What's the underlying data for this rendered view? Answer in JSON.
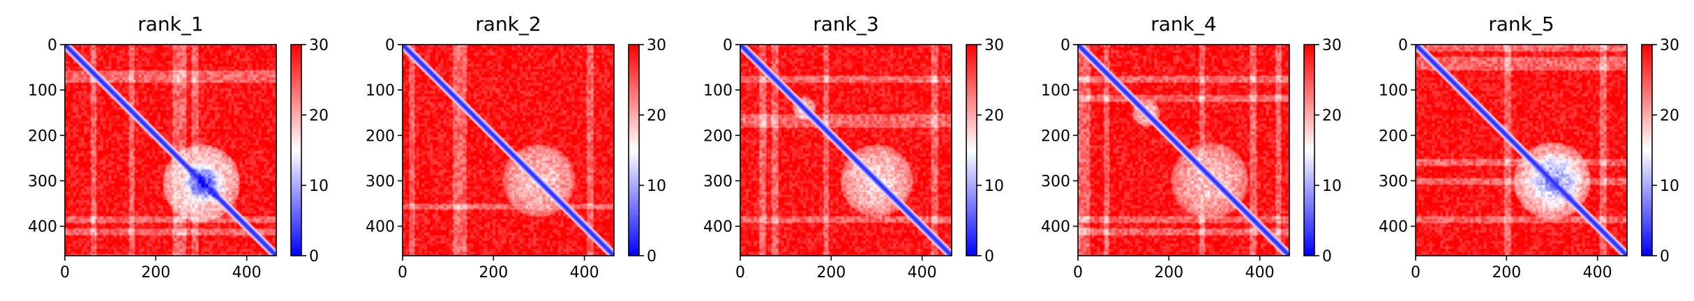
{
  "chart_data": [
    {
      "type": "heatmap",
      "title": "rank_1",
      "x_ticks": [
        0,
        200,
        400
      ],
      "y_ticks": [
        0,
        100,
        200,
        300,
        400
      ],
      "xlim": [
        0,
        465
      ],
      "ylim": [
        465,
        0
      ],
      "colorbar": {
        "range": [
          0,
          30
        ],
        "ticks": [
          0,
          10,
          20,
          30
        ],
        "colormap": "bwr"
      },
      "hotspots": [
        {
          "cx": 305,
          "cy": 305,
          "r": 45,
          "value": 3,
          "sharp": 0.35
        },
        {
          "cx": 300,
          "cy": 305,
          "r": 85,
          "value": 16,
          "sharp": 0.2
        }
      ]
    },
    {
      "type": "heatmap",
      "title": "rank_2",
      "x_ticks": [
        0,
        200,
        400
      ],
      "y_ticks": [
        0,
        100,
        200,
        300,
        400
      ],
      "xlim": [
        0,
        465
      ],
      "ylim": [
        465,
        0
      ],
      "colorbar": {
        "range": [
          0,
          30
        ],
        "ticks": [
          0,
          10,
          20,
          30
        ],
        "colormap": "bwr"
      },
      "hotspots": [
        {
          "cx": 300,
          "cy": 300,
          "r": 80,
          "value": 18,
          "sharp": 0.25
        }
      ]
    },
    {
      "type": "heatmap",
      "title": "rank_3",
      "x_ticks": [
        0,
        200,
        400
      ],
      "y_ticks": [
        0,
        100,
        200,
        300,
        400
      ],
      "xlim": [
        0,
        465
      ],
      "ylim": [
        465,
        0
      ],
      "colorbar": {
        "range": [
          0,
          30
        ],
        "ticks": [
          0,
          10,
          20,
          30
        ],
        "colormap": "bwr"
      },
      "hotspots": [
        {
          "cx": 300,
          "cy": 300,
          "r": 80,
          "value": 17,
          "sharp": 0.25
        },
        {
          "cx": 140,
          "cy": 140,
          "r": 25,
          "value": 18,
          "sharp": 0.2
        }
      ]
    },
    {
      "type": "heatmap",
      "title": "rank_4",
      "x_ticks": [
        0,
        200,
        400
      ],
      "y_ticks": [
        0,
        100,
        200,
        300,
        400
      ],
      "xlim": [
        0,
        465
      ],
      "ylim": [
        465,
        0
      ],
      "colorbar": {
        "range": [
          0,
          30
        ],
        "ticks": [
          0,
          10,
          20,
          30
        ],
        "colormap": "bwr"
      },
      "hotspots": [
        {
          "cx": 290,
          "cy": 300,
          "r": 85,
          "value": 18,
          "sharp": 0.25
        },
        {
          "cx": 150,
          "cy": 150,
          "r": 30,
          "value": 19,
          "sharp": 0.2
        }
      ]
    },
    {
      "type": "heatmap",
      "title": "rank_5",
      "x_ticks": [
        0,
        200,
        400
      ],
      "y_ticks": [
        0,
        100,
        200,
        300,
        400
      ],
      "xlim": [
        0,
        465
      ],
      "ylim": [
        465,
        0
      ],
      "colorbar": {
        "range": [
          0,
          30
        ],
        "ticks": [
          0,
          10,
          20,
          30
        ],
        "colormap": "bwr"
      },
      "hotspots": [
        {
          "cx": 305,
          "cy": 300,
          "r": 60,
          "value": 8,
          "sharp": 0.3
        },
        {
          "cx": 300,
          "cy": 300,
          "r": 85,
          "value": 17,
          "sharp": 0.2
        }
      ]
    }
  ]
}
